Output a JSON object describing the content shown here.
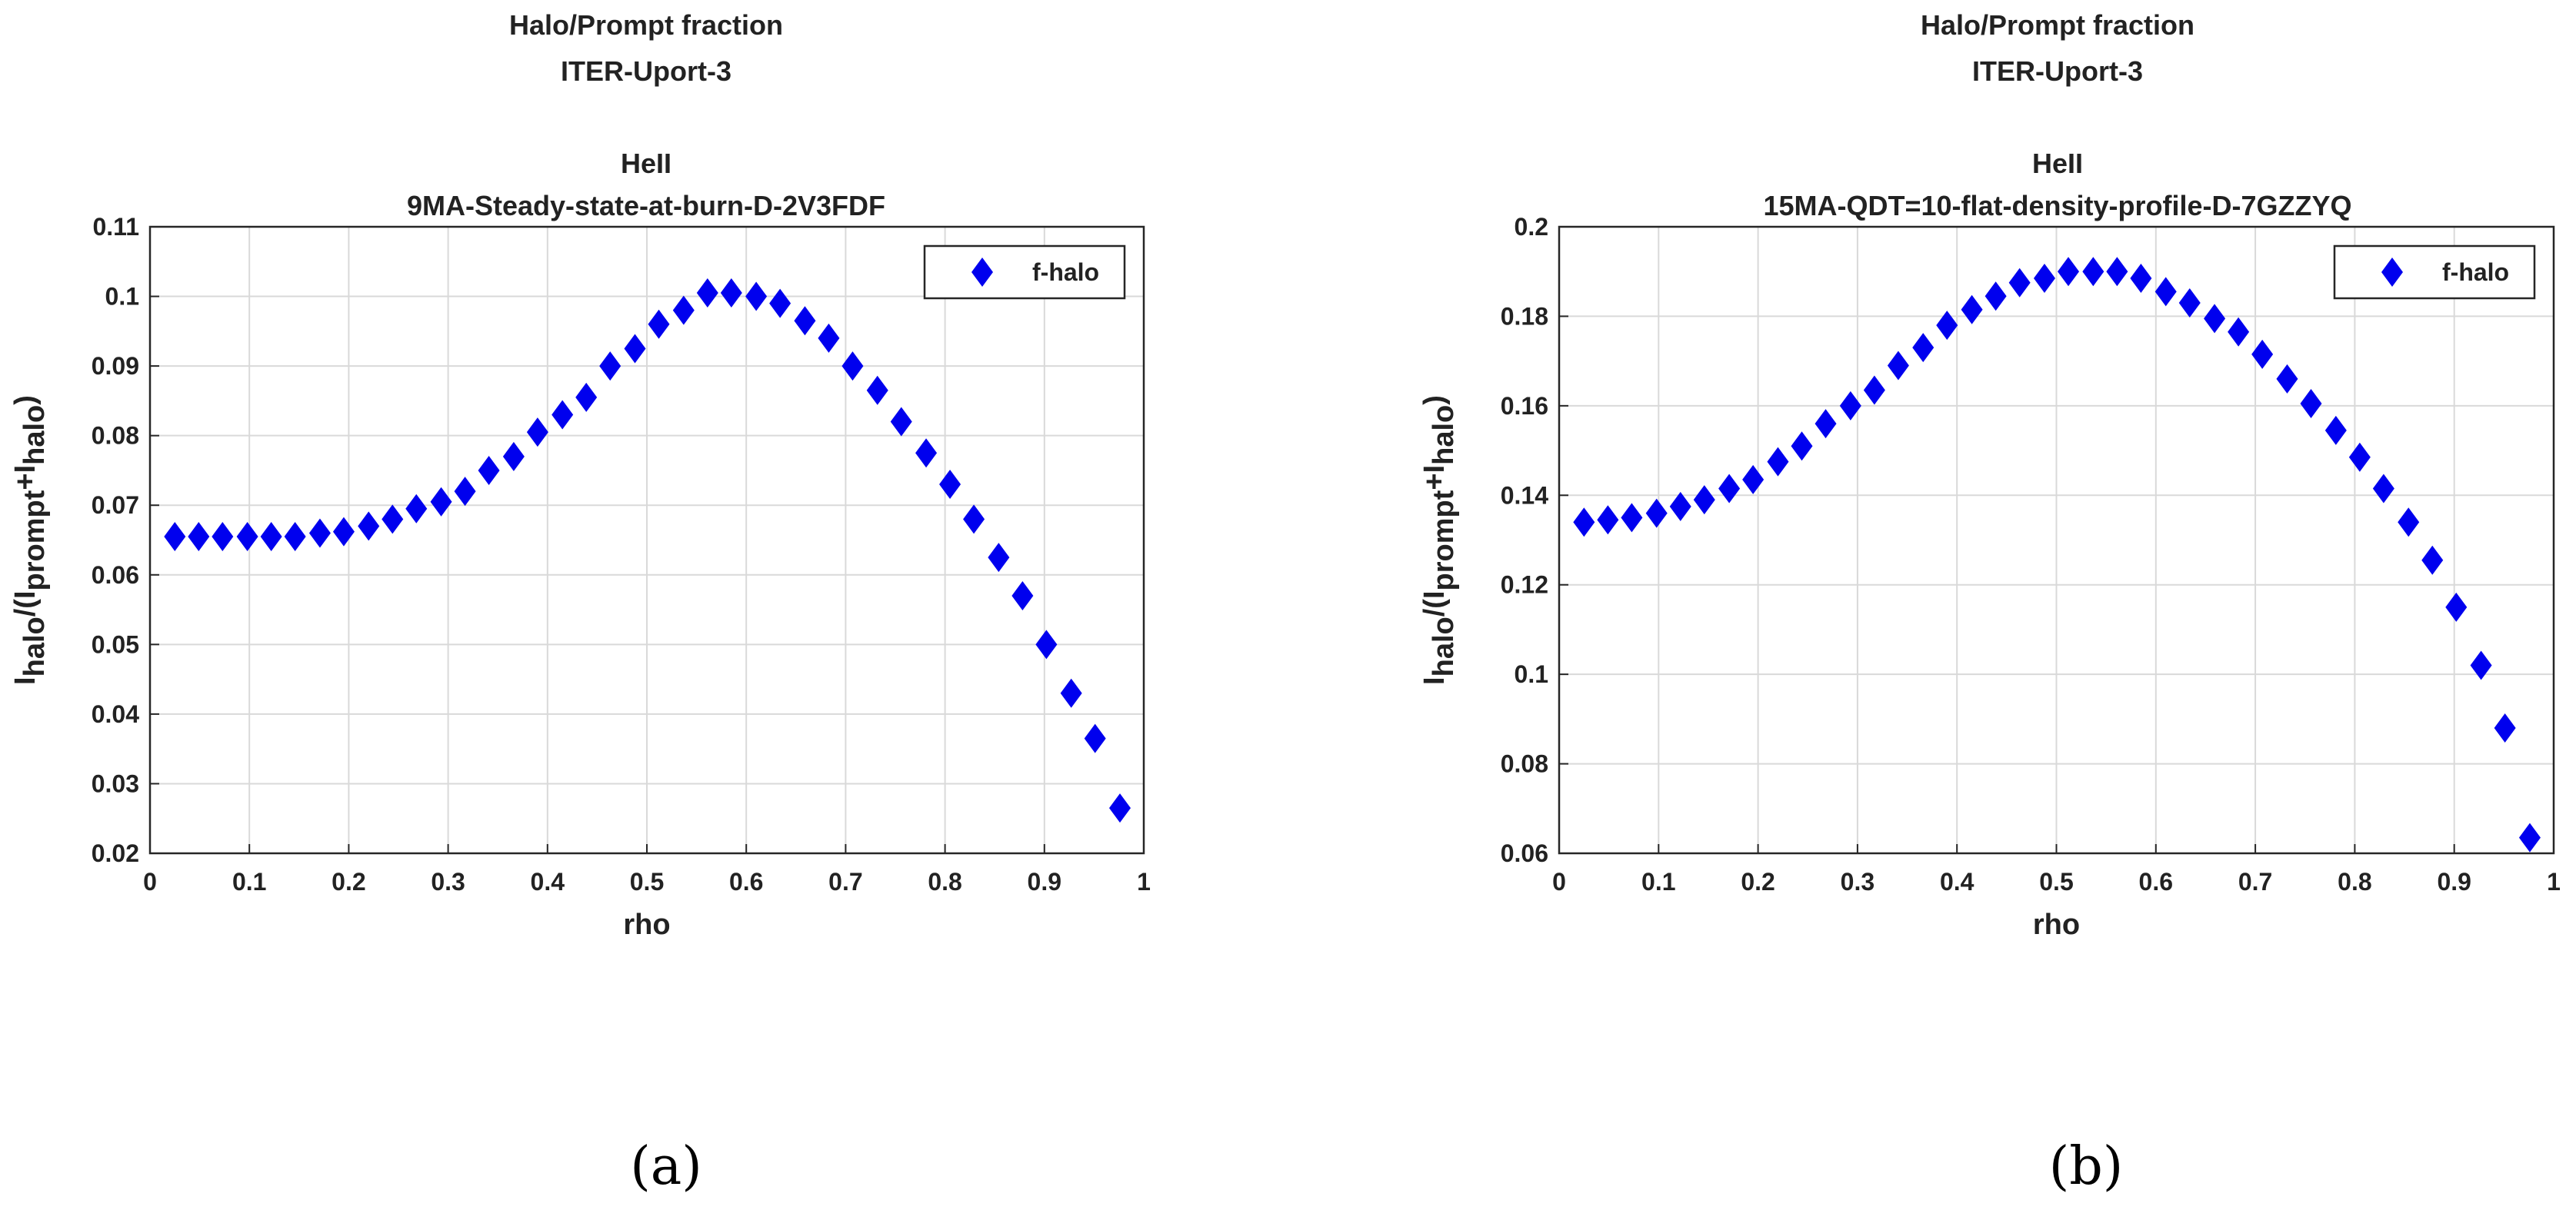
{
  "chart_data": [
    {
      "type": "scatter",
      "title_lines": [
        "Halo/Prompt fraction",
        "ITER-Uport-3",
        "",
        "HeII",
        "9MA-Steady-state-at-burn-D-2V3FDF"
      ],
      "xlabel": "rho",
      "ylabel": {
        "main": "I",
        "sub1": "halo",
        "mid": "/(I",
        "sub2": "prompt",
        "plus": "+I",
        "sub3": "halo",
        "close": ")"
      },
      "xlim": [
        0,
        1
      ],
      "ylim": [
        0.02,
        0.11
      ],
      "xticks": [
        "0",
        "0.1",
        "0.2",
        "0.3",
        "0.4",
        "0.5",
        "0.6",
        "0.7",
        "0.8",
        "0.9",
        "1"
      ],
      "yticks": [
        "0.02",
        "0.03",
        "0.04",
        "0.05",
        "0.06",
        "0.07",
        "0.08",
        "0.09",
        "0.1",
        "0.11"
      ],
      "legend": "f-halo",
      "legend_position": "top-right",
      "color": "#0000ee",
      "series": [
        {
          "name": "f-halo",
          "x": [
            0.025,
            0.049,
            0.073,
            0.098,
            0.122,
            0.146,
            0.171,
            0.195,
            0.22,
            0.244,
            0.268,
            0.293,
            0.317,
            0.341,
            0.366,
            0.39,
            0.415,
            0.439,
            0.463,
            0.488,
            0.512,
            0.537,
            0.561,
            0.585,
            0.61,
            0.634,
            0.659,
            0.683,
            0.707,
            0.732,
            0.756,
            0.781,
            0.805,
            0.829,
            0.854,
            0.878,
            0.902,
            0.927,
            0.951,
            0.976
          ],
          "y": [
            0.0655,
            0.0655,
            0.0655,
            0.0655,
            0.0655,
            0.0655,
            0.066,
            0.0662,
            0.067,
            0.068,
            0.0695,
            0.0705,
            0.072,
            0.075,
            0.077,
            0.0805,
            0.083,
            0.0855,
            0.09,
            0.0925,
            0.096,
            0.098,
            0.1005,
            0.1005,
            0.1,
            0.099,
            0.0965,
            0.094,
            0.09,
            0.0865,
            0.082,
            0.0775,
            0.073,
            0.068,
            0.0625,
            0.057,
            0.05,
            0.043,
            0.0365,
            0.0265
          ]
        }
      ],
      "caption": "(a)"
    },
    {
      "type": "scatter",
      "title_lines": [
        "Halo/Prompt fraction",
        "ITER-Uport-3",
        "",
        "HeII",
        "15MA-QDT=10-flat-density-profile-D-7GZZYQ"
      ],
      "xlabel": "rho",
      "ylabel": {
        "main": "I",
        "sub1": "halo",
        "mid": "/(I",
        "sub2": "prompt",
        "plus": "+I",
        "sub3": "halo",
        "close": ")"
      },
      "xlim": [
        0,
        1
      ],
      "ylim": [
        0.06,
        0.2
      ],
      "xticks": [
        "0",
        "0.1",
        "0.2",
        "0.3",
        "0.4",
        "0.5",
        "0.6",
        "0.7",
        "0.8",
        "0.9",
        "1"
      ],
      "yticks": [
        "0.06",
        "0.08",
        "0.1",
        "0.12",
        "0.14",
        "0.16",
        "0.18",
        "0.2"
      ],
      "legend": "f-halo",
      "legend_position": "top-right",
      "color": "#0000ee",
      "series": [
        {
          "name": "f-halo",
          "x": [
            0.025,
            0.049,
            0.073,
            0.098,
            0.122,
            0.146,
            0.171,
            0.195,
            0.22,
            0.244,
            0.268,
            0.293,
            0.317,
            0.341,
            0.366,
            0.39,
            0.415,
            0.439,
            0.463,
            0.488,
            0.512,
            0.537,
            0.561,
            0.585,
            0.61,
            0.634,
            0.659,
            0.683,
            0.707,
            0.732,
            0.756,
            0.781,
            0.805,
            0.829,
            0.854,
            0.878,
            0.902,
            0.927,
            0.951,
            0.976
          ],
          "y": [
            0.134,
            0.1345,
            0.135,
            0.136,
            0.1375,
            0.139,
            0.1415,
            0.1435,
            0.1475,
            0.151,
            0.156,
            0.16,
            0.1635,
            0.169,
            0.173,
            0.178,
            0.1815,
            0.1845,
            0.1875,
            0.1885,
            0.19,
            0.19,
            0.19,
            0.1885,
            0.1855,
            0.183,
            0.1795,
            0.1765,
            0.1715,
            0.166,
            0.1605,
            0.1545,
            0.1485,
            0.1415,
            0.134,
            0.1255,
            0.115,
            0.102,
            0.088,
            0.0635
          ]
        }
      ],
      "caption": "(b)"
    }
  ]
}
